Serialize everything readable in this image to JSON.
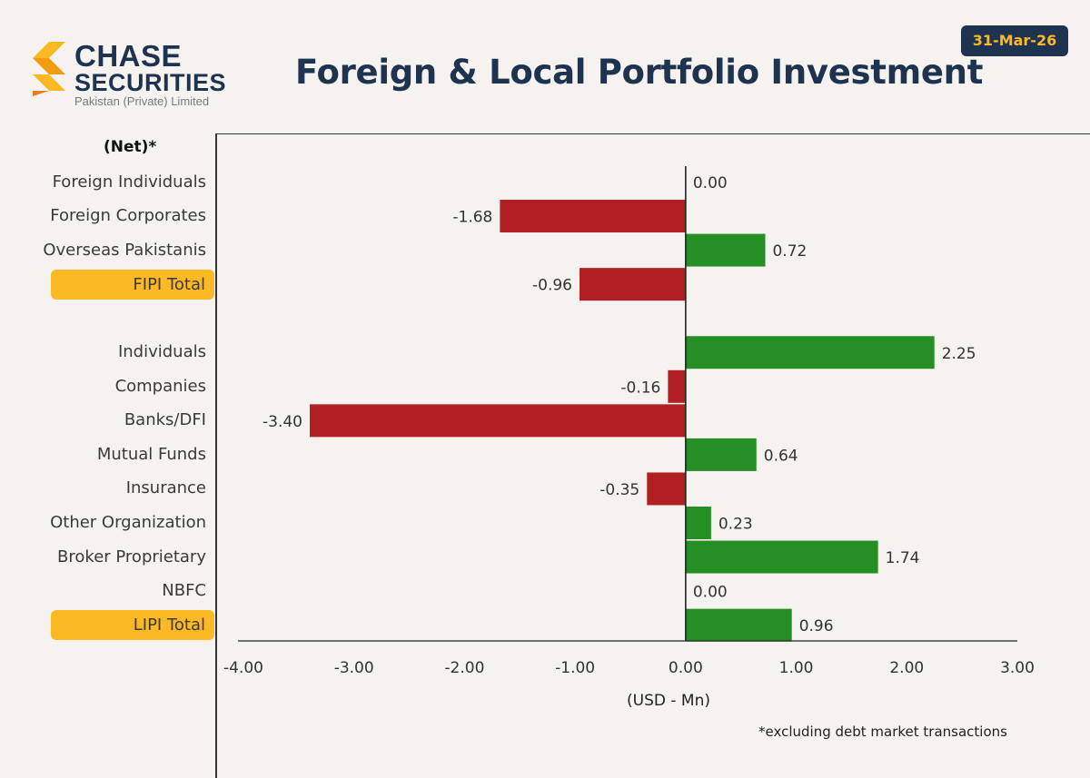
{
  "header": {
    "logo": {
      "line1": "CHASE",
      "line2": "SECURITIES",
      "sub": "Pakistan (Private) Limited"
    },
    "title": "Foreign & Local Portfolio Investment",
    "date": "31-Mar-26"
  },
  "colors": {
    "positive": "#258f25",
    "negative": "#b11f22",
    "highlight": "#fdb924",
    "navy": "#1e3350"
  },
  "chart_data": {
    "type": "bar",
    "orientation": "horizontal",
    "title": "Foreign & Local Portfolio Investment",
    "header_label": "(Net)*",
    "xlabel": "(USD - Mn)",
    "xlim": [
      -4,
      3
    ],
    "xticks": [
      -4,
      -3,
      -2,
      -1,
      0,
      1,
      2,
      3
    ],
    "xtick_labels": [
      "-4.00",
      "-3.00",
      "-2.00",
      "-1.00",
      "0.00",
      "1.00",
      "2.00",
      "3.00"
    ],
    "categories": [
      "Foreign Individuals",
      "Foreign Corporates",
      "Overseas Pakistanis",
      "FIPI Total",
      "",
      "Individuals",
      "Companies",
      "Banks/DFI",
      "Mutual Funds",
      "Insurance",
      "Other Organization",
      "Broker Proprietary",
      "NBFC",
      "LIPI Total"
    ],
    "values": [
      0.0,
      -1.68,
      0.72,
      -0.96,
      null,
      2.25,
      -0.16,
      -3.4,
      0.64,
      -0.35,
      0.23,
      1.74,
      0.0,
      0.96
    ],
    "value_labels": [
      "0.00",
      "-1.68",
      "0.72",
      "-0.96",
      "",
      "2.25",
      "-0.16",
      "-3.40",
      "0.64",
      "-0.35",
      "0.23",
      "1.74",
      "0.00",
      "0.96"
    ],
    "highlighted": [
      "FIPI Total",
      "LIPI Total"
    ],
    "footnote": "*excluding debt market transactions"
  }
}
